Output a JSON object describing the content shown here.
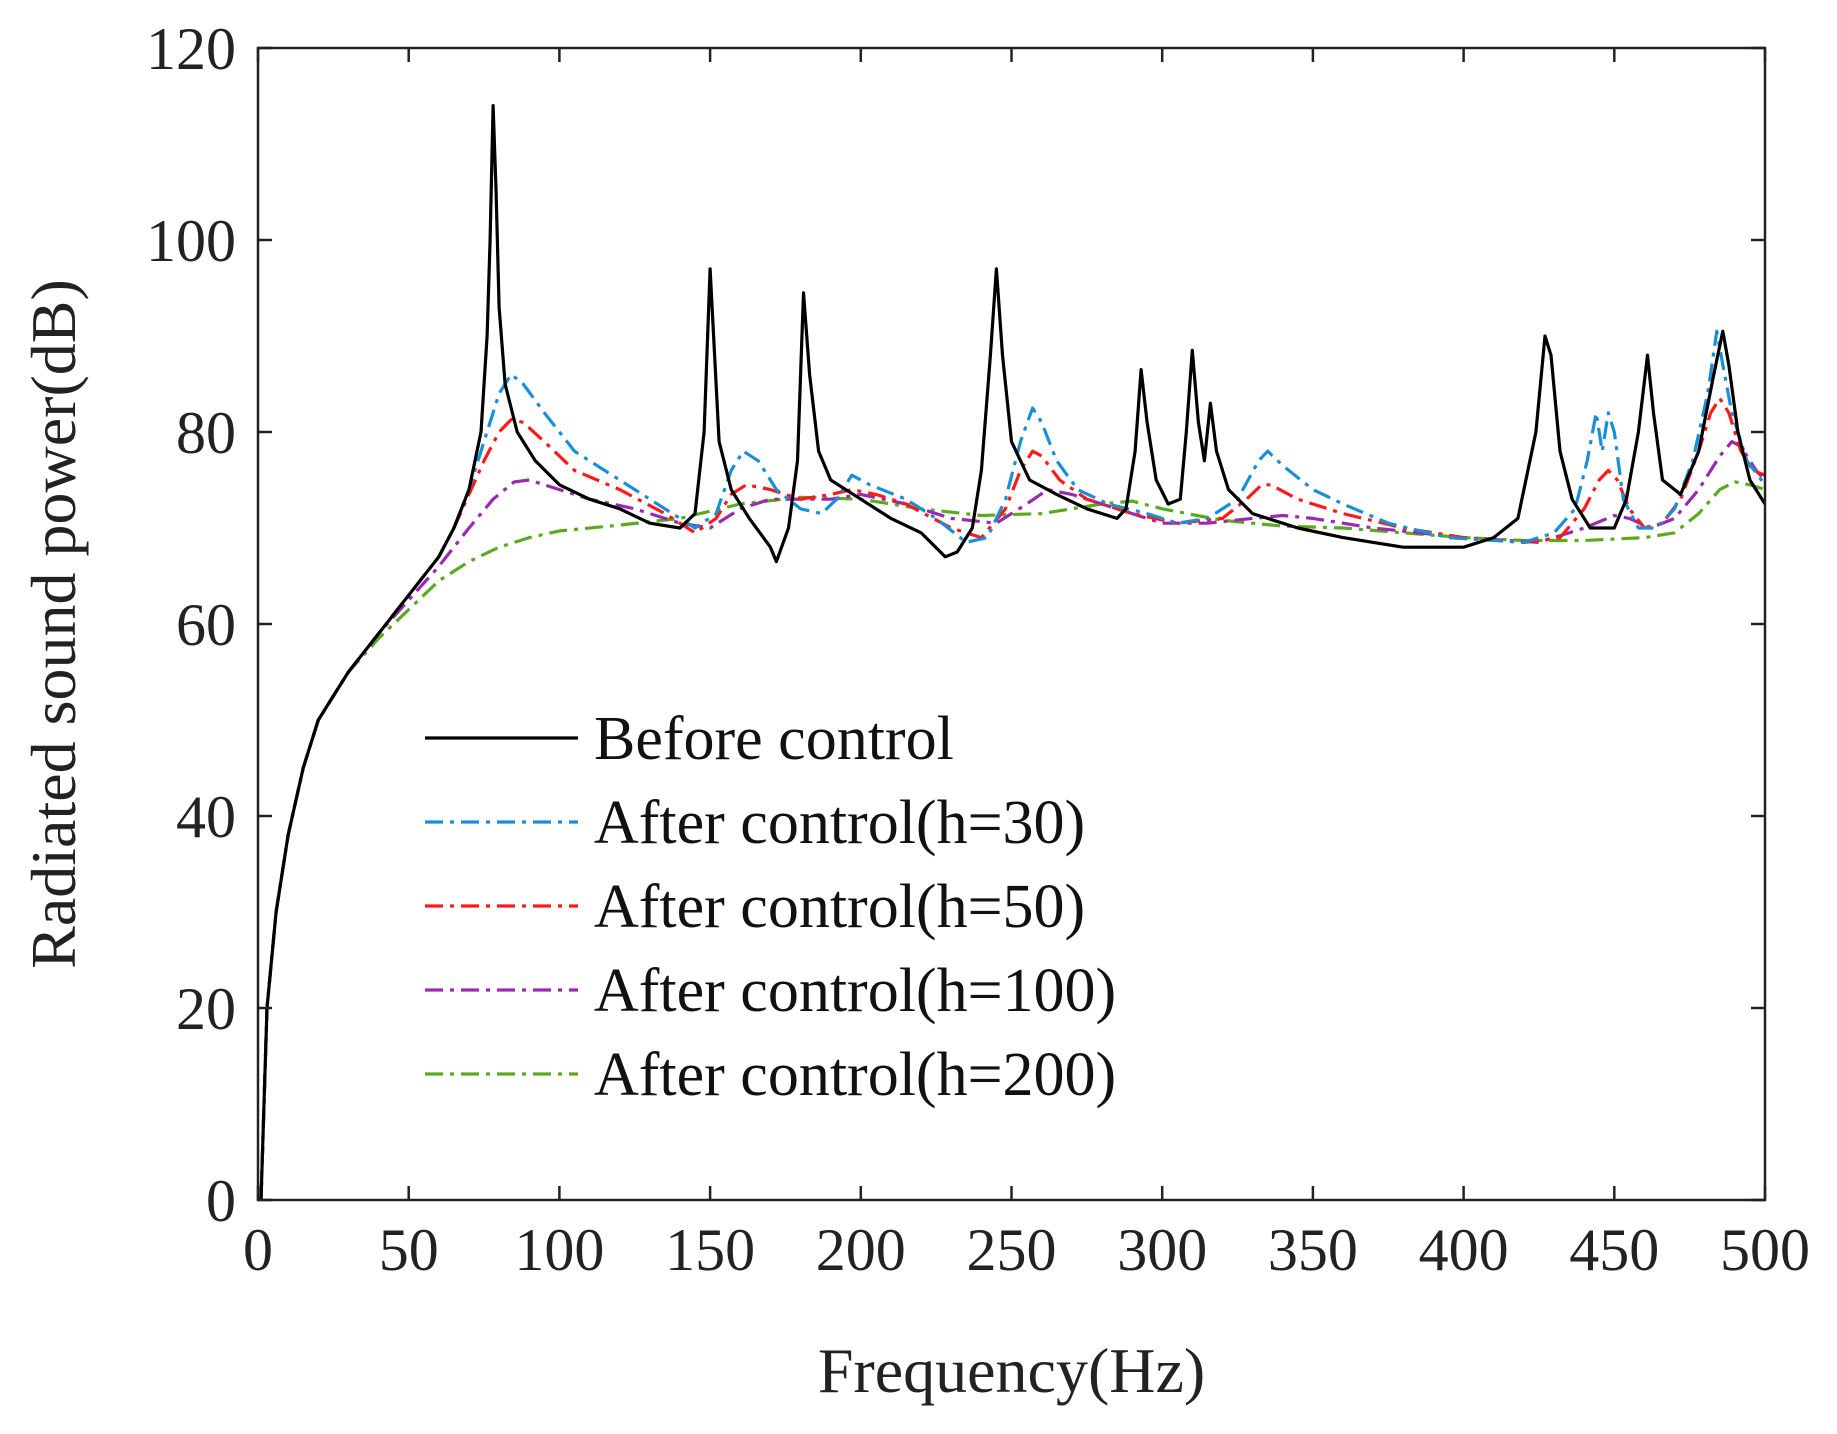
{
  "chart_data": {
    "type": "line",
    "title": "",
    "xlabel": "Frequency(Hz)",
    "ylabel": "Radiated sound power(dB)",
    "xlim": [
      0,
      500
    ],
    "ylim": [
      0,
      120
    ],
    "xticks": [
      0,
      50,
      100,
      150,
      200,
      250,
      300,
      350,
      400,
      450,
      500
    ],
    "yticks": [
      0,
      20,
      40,
      60,
      80,
      100,
      120
    ],
    "grid": false,
    "legend_position": "lower-middle",
    "series": [
      {
        "name": "Before control",
        "color": "#000000",
        "dash": "solid",
        "points": [
          [
            1,
            0
          ],
          [
            3,
            20
          ],
          [
            6,
            30
          ],
          [
            10,
            38
          ],
          [
            15,
            45
          ],
          [
            20,
            50
          ],
          [
            30,
            55
          ],
          [
            40,
            59
          ],
          [
            50,
            63
          ],
          [
            60,
            67
          ],
          [
            65,
            70
          ],
          [
            70,
            74
          ],
          [
            74,
            80
          ],
          [
            76,
            90
          ],
          [
            77,
            100
          ],
          [
            78,
            114
          ],
          [
            79,
            105
          ],
          [
            80,
            93
          ],
          [
            82,
            85
          ],
          [
            86,
            80
          ],
          [
            92,
            77
          ],
          [
            100,
            74.5
          ],
          [
            110,
            73
          ],
          [
            120,
            72
          ],
          [
            130,
            70.5
          ],
          [
            140,
            70
          ],
          [
            145,
            71.5
          ],
          [
            148,
            80
          ],
          [
            150,
            97
          ],
          [
            151,
            91
          ],
          [
            153,
            79
          ],
          [
            157,
            74
          ],
          [
            163,
            71
          ],
          [
            170,
            68
          ],
          [
            172,
            66.5
          ],
          [
            176,
            70
          ],
          [
            179,
            77
          ],
          [
            181,
            94.5
          ],
          [
            183,
            86
          ],
          [
            186,
            78
          ],
          [
            190,
            75
          ],
          [
            200,
            73
          ],
          [
            210,
            71
          ],
          [
            220,
            69.5
          ],
          [
            228,
            67
          ],
          [
            232,
            67.5
          ],
          [
            237,
            70
          ],
          [
            240,
            76
          ],
          [
            243,
            88
          ],
          [
            245,
            97
          ],
          [
            247,
            88
          ],
          [
            250,
            79
          ],
          [
            256,
            75
          ],
          [
            265,
            73.5
          ],
          [
            275,
            72
          ],
          [
            285,
            71
          ],
          [
            288,
            72
          ],
          [
            291,
            78
          ],
          [
            293,
            86.5
          ],
          [
            295,
            81
          ],
          [
            298,
            75
          ],
          [
            302,
            72.5
          ],
          [
            306,
            73
          ],
          [
            308,
            80
          ],
          [
            310,
            88.5
          ],
          [
            312,
            81
          ],
          [
            314,
            77
          ],
          [
            316,
            83
          ],
          [
            318,
            78
          ],
          [
            322,
            74
          ],
          [
            330,
            71.5
          ],
          [
            345,
            70
          ],
          [
            360,
            69
          ],
          [
            380,
            68
          ],
          [
            400,
            68
          ],
          [
            410,
            69
          ],
          [
            418,
            71
          ],
          [
            424,
            80
          ],
          [
            427,
            90
          ],
          [
            429,
            88
          ],
          [
            432,
            78
          ],
          [
            436,
            73
          ],
          [
            442,
            70
          ],
          [
            446,
            70
          ],
          [
            450,
            70
          ],
          [
            454,
            73
          ],
          [
            458,
            80
          ],
          [
            461,
            88
          ],
          [
            463,
            82
          ],
          [
            466,
            75
          ],
          [
            472,
            73.5
          ],
          [
            478,
            78
          ],
          [
            483,
            86
          ],
          [
            486,
            90.5
          ],
          [
            488,
            87
          ],
          [
            491,
            80
          ],
          [
            495,
            75
          ],
          [
            500,
            72.5
          ]
        ]
      },
      {
        "name": "After control(h=30)",
        "color": "#1a8fd6",
        "dash": "dashdot",
        "points": [
          [
            1,
            0
          ],
          [
            3,
            20
          ],
          [
            6,
            30
          ],
          [
            10,
            38
          ],
          [
            15,
            45
          ],
          [
            20,
            50
          ],
          [
            30,
            55
          ],
          [
            40,
            59
          ],
          [
            50,
            63
          ],
          [
            60,
            67
          ],
          [
            65,
            70
          ],
          [
            70,
            74
          ],
          [
            75,
            79
          ],
          [
            80,
            84
          ],
          [
            84,
            86
          ],
          [
            88,
            85
          ],
          [
            95,
            82
          ],
          [
            105,
            78
          ],
          [
            120,
            75
          ],
          [
            135,
            72
          ],
          [
            145,
            70
          ],
          [
            152,
            71.5
          ],
          [
            157,
            76
          ],
          [
            161,
            78
          ],
          [
            166,
            77
          ],
          [
            172,
            74
          ],
          [
            180,
            72
          ],
          [
            187,
            71.5
          ],
          [
            192,
            73
          ],
          [
            197,
            75.5
          ],
          [
            203,
            74.5
          ],
          [
            215,
            73
          ],
          [
            225,
            71
          ],
          [
            235,
            68.5
          ],
          [
            242,
            69
          ],
          [
            248,
            73
          ],
          [
            253,
            79
          ],
          [
            257,
            82.5
          ],
          [
            260,
            81
          ],
          [
            265,
            77
          ],
          [
            272,
            74
          ],
          [
            282,
            72.5
          ],
          [
            295,
            71.5
          ],
          [
            305,
            70.5
          ],
          [
            315,
            71
          ],
          [
            325,
            73
          ],
          [
            332,
            77
          ],
          [
            335,
            78
          ],
          [
            340,
            76.5
          ],
          [
            350,
            74
          ],
          [
            360,
            72.5
          ],
          [
            375,
            70.5
          ],
          [
            395,
            69
          ],
          [
            420,
            68.5
          ],
          [
            430,
            69.5
          ],
          [
            437,
            72
          ],
          [
            441,
            77
          ],
          [
            444,
            82
          ],
          [
            446,
            78
          ],
          [
            448,
            82
          ],
          [
            450,
            80
          ],
          [
            453,
            73
          ],
          [
            458,
            70
          ],
          [
            464,
            70
          ],
          [
            470,
            72
          ],
          [
            476,
            77
          ],
          [
            481,
            84
          ],
          [
            484,
            90.5
          ],
          [
            486,
            87
          ],
          [
            489,
            82
          ],
          [
            494,
            77
          ],
          [
            500,
            74.5
          ]
        ]
      },
      {
        "name": "After control(h=50)",
        "color": "#ff1a1a",
        "dash": "dashdot",
        "points": [
          [
            1,
            0
          ],
          [
            3,
            20
          ],
          [
            6,
            30
          ],
          [
            10,
            38
          ],
          [
            15,
            45
          ],
          [
            20,
            50
          ],
          [
            30,
            55
          ],
          [
            40,
            59
          ],
          [
            50,
            63
          ],
          [
            60,
            67
          ],
          [
            65,
            70
          ],
          [
            70,
            73.5
          ],
          [
            75,
            77
          ],
          [
            80,
            80
          ],
          [
            84,
            81.3
          ],
          [
            88,
            81
          ],
          [
            95,
            79
          ],
          [
            105,
            76
          ],
          [
            120,
            74
          ],
          [
            135,
            71.5
          ],
          [
            145,
            69.5
          ],
          [
            152,
            71
          ],
          [
            157,
            73.5
          ],
          [
            162,
            74.5
          ],
          [
            170,
            74
          ],
          [
            180,
            73
          ],
          [
            190,
            73.5
          ],
          [
            197,
            74
          ],
          [
            205,
            73.5
          ],
          [
            215,
            72.5
          ],
          [
            230,
            70
          ],
          [
            240,
            69
          ],
          [
            248,
            72
          ],
          [
            253,
            76
          ],
          [
            257,
            78
          ],
          [
            260,
            77.5
          ],
          [
            266,
            75
          ],
          [
            275,
            73
          ],
          [
            290,
            71.5
          ],
          [
            305,
            70.5
          ],
          [
            320,
            71
          ],
          [
            328,
            73
          ],
          [
            333,
            74.5
          ],
          [
            336,
            74.5
          ],
          [
            345,
            73
          ],
          [
            360,
            71.5
          ],
          [
            380,
            70
          ],
          [
            400,
            69
          ],
          [
            420,
            68.5
          ],
          [
            432,
            69
          ],
          [
            440,
            72
          ],
          [
            445,
            75
          ],
          [
            448,
            76
          ],
          [
            451,
            75
          ],
          [
            455,
            72
          ],
          [
            460,
            70
          ],
          [
            466,
            70.5
          ],
          [
            472,
            73
          ],
          [
            478,
            78
          ],
          [
            482,
            82
          ],
          [
            485,
            83.5
          ],
          [
            488,
            82
          ],
          [
            492,
            78
          ],
          [
            496,
            76
          ],
          [
            500,
            75.5
          ]
        ]
      },
      {
        "name": "After control(h=100)",
        "color": "#9b2ab0",
        "dash": "dashdot",
        "points": [
          [
            1,
            0
          ],
          [
            3,
            20
          ],
          [
            6,
            30
          ],
          [
            10,
            38
          ],
          [
            15,
            45
          ],
          [
            20,
            50
          ],
          [
            30,
            55
          ],
          [
            40,
            59
          ],
          [
            50,
            62.5
          ],
          [
            60,
            66
          ],
          [
            70,
            70
          ],
          [
            78,
            73
          ],
          [
            85,
            74.8
          ],
          [
            90,
            75
          ],
          [
            100,
            74
          ],
          [
            110,
            73
          ],
          [
            125,
            72
          ],
          [
            140,
            70.5
          ],
          [
            150,
            70
          ],
          [
            160,
            72
          ],
          [
            170,
            73
          ],
          [
            180,
            73
          ],
          [
            190,
            73
          ],
          [
            200,
            73.5
          ],
          [
            215,
            72.5
          ],
          [
            230,
            71
          ],
          [
            245,
            70.5
          ],
          [
            255,
            72.5
          ],
          [
            262,
            74
          ],
          [
            270,
            73.5
          ],
          [
            285,
            72
          ],
          [
            300,
            70.5
          ],
          [
            315,
            70.5
          ],
          [
            330,
            71
          ],
          [
            340,
            71.3
          ],
          [
            350,
            71
          ],
          [
            370,
            70
          ],
          [
            400,
            69
          ],
          [
            425,
            68.5
          ],
          [
            440,
            70
          ],
          [
            450,
            71.3
          ],
          [
            455,
            71
          ],
          [
            462,
            70
          ],
          [
            470,
            71
          ],
          [
            478,
            74
          ],
          [
            485,
            77.5
          ],
          [
            489,
            79
          ],
          [
            492,
            78.5
          ],
          [
            497,
            76
          ],
          [
            500,
            75
          ]
        ]
      },
      {
        "name": "After control(h=200)",
        "color": "#5aaa1e",
        "dash": "dashdot",
        "points": [
          [
            1,
            0
          ],
          [
            3,
            20
          ],
          [
            6,
            30
          ],
          [
            10,
            38
          ],
          [
            15,
            45
          ],
          [
            20,
            50
          ],
          [
            30,
            55
          ],
          [
            40,
            58.5
          ],
          [
            50,
            61.5
          ],
          [
            60,
            64.5
          ],
          [
            70,
            66.5
          ],
          [
            80,
            68
          ],
          [
            90,
            69
          ],
          [
            100,
            69.7
          ],
          [
            120,
            70.3
          ],
          [
            140,
            71
          ],
          [
            160,
            72.5
          ],
          [
            180,
            73.2
          ],
          [
            200,
            73
          ],
          [
            220,
            72
          ],
          [
            240,
            71.3
          ],
          [
            260,
            71.5
          ],
          [
            280,
            72.5
          ],
          [
            290,
            72.8
          ],
          [
            300,
            72
          ],
          [
            320,
            70.8
          ],
          [
            340,
            70.2
          ],
          [
            360,
            70
          ],
          [
            380,
            69.5
          ],
          [
            400,
            69
          ],
          [
            420,
            68.7
          ],
          [
            440,
            68.7
          ],
          [
            460,
            69
          ],
          [
            470,
            69.5
          ],
          [
            478,
            71.5
          ],
          [
            485,
            74
          ],
          [
            490,
            74.8
          ],
          [
            495,
            74.5
          ],
          [
            500,
            74
          ]
        ]
      }
    ]
  }
}
